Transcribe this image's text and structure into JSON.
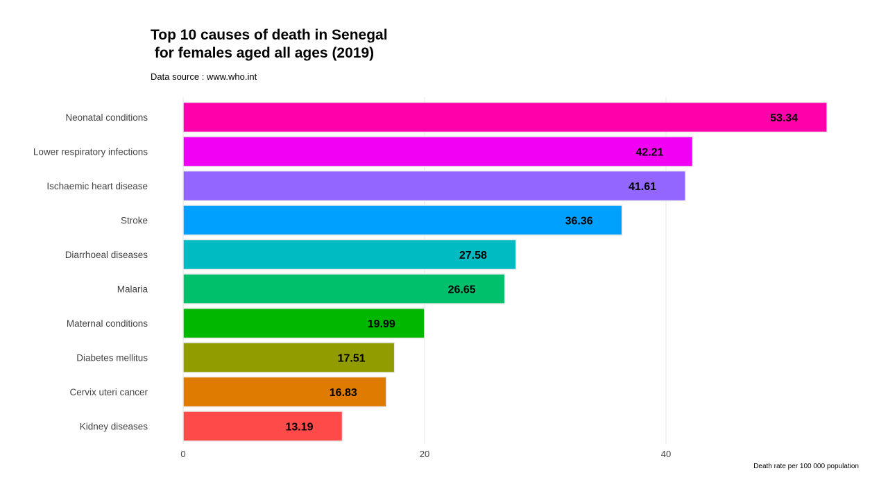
{
  "title": "Top 10 causes of death in Senegal\n for females aged all ages (2019)",
  "subtitle": "Data source : www.who.int",
  "chart_data": {
    "type": "bar",
    "orientation": "horizontal",
    "title": "Top 10 causes of death in Senegal\n for females aged all ages (2019)",
    "subtitle": "Data source : www.who.int",
    "xlabel": "Death rate per 100 000 population",
    "ylabel": "",
    "xlim": [
      0,
      53.34
    ],
    "xticks": [
      0,
      20,
      40
    ],
    "grid": "vertical",
    "legend": "none",
    "categories": [
      "Neonatal conditions",
      "Lower respiratory infections",
      "Ischaemic heart disease",
      "Stroke",
      "Diarrhoeal diseases",
      "Malaria",
      "Maternal conditions",
      "Diabetes mellitus",
      "Cervix uteri cancer",
      "Kidney diseases"
    ],
    "values": [
      53.34,
      42.21,
      41.61,
      36.36,
      27.58,
      26.65,
      19.99,
      17.51,
      16.83,
      13.19
    ],
    "colors": [
      "#FF00AA",
      "#F200F4",
      "#9266FF",
      "#00A0FF",
      "#00BBC2",
      "#00C06B",
      "#00B800",
      "#909C00",
      "#DE7B00",
      "#FF4A4A"
    ]
  }
}
